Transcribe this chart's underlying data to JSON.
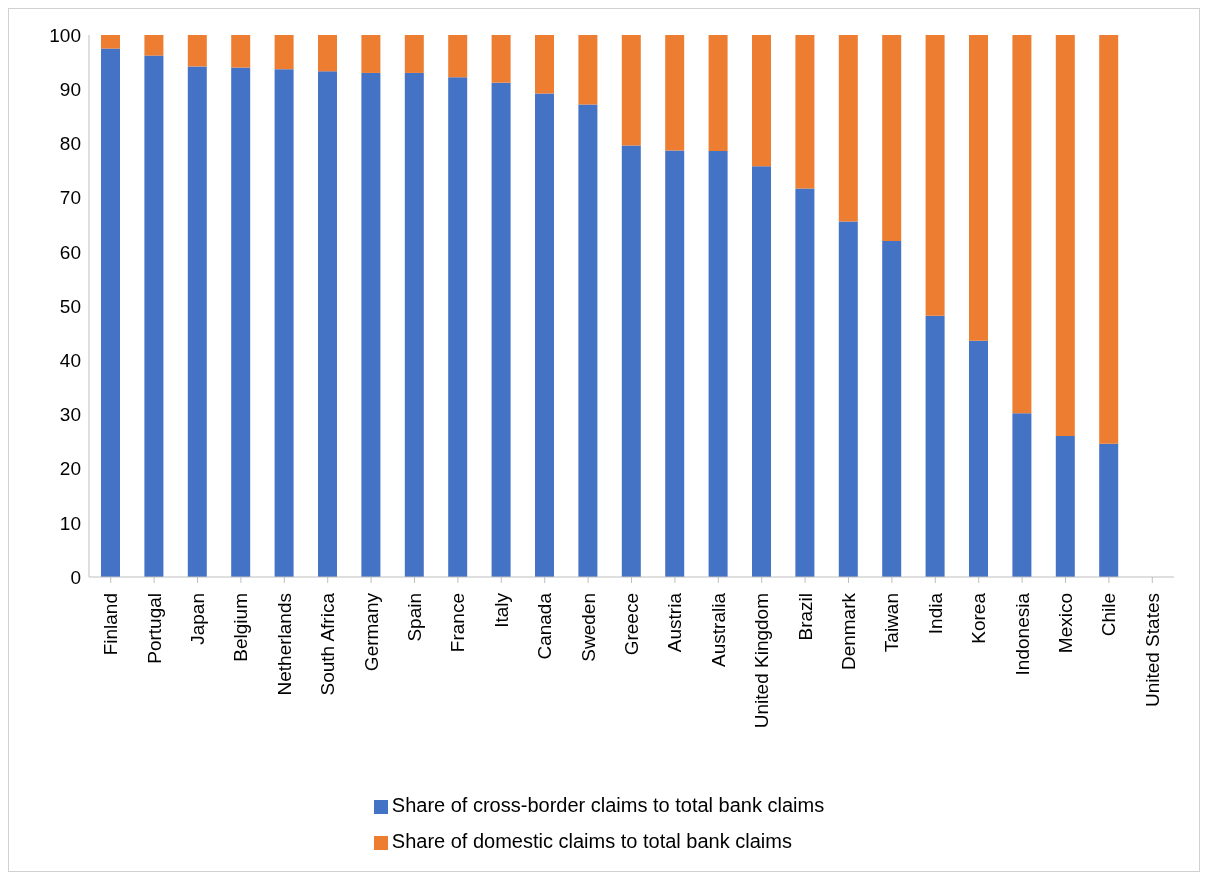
{
  "chart_data": {
    "type": "bar",
    "stacked": true,
    "categories": [
      "Finland",
      "Portugal",
      "Japan",
      "Belgium",
      "Netherlands",
      "South Africa",
      "Germany",
      "Spain",
      "France",
      "Italy",
      "Canada",
      "Sweden",
      "Greece",
      "Austria",
      "Australia",
      "United Kingdom",
      "Brazil",
      "Denmark",
      "Taiwan",
      "India",
      "Korea",
      "Indonesia",
      "Mexico",
      "Chile",
      "United States"
    ],
    "series": [
      {
        "name": "Share of cross-border claims to total bank claims",
        "color": "#4472c4",
        "values": [
          97.5,
          96.2,
          94.2,
          94,
          93.7,
          93.3,
          93,
          93,
          92.2,
          91.2,
          89.2,
          87.2,
          79.6,
          78.7,
          78.6,
          75.8,
          71.7,
          65.6,
          62,
          48.2,
          43.6,
          30.2,
          26,
          24.6,
          null
        ]
      },
      {
        "name": "Share of domestic claims to total bank claims",
        "color": "#ed7d31",
        "values": [
          2.5,
          3.8,
          5.8,
          6,
          6.3,
          6.7,
          7,
          7,
          7.8,
          8.8,
          10.8,
          12.8,
          20.4,
          21.3,
          21.4,
          24.2,
          28.3,
          34.4,
          38,
          51.8,
          56.4,
          69.8,
          74,
          75.4,
          null
        ]
      }
    ],
    "ylim": [
      0,
      100
    ],
    "yticks": [
      0,
      10,
      20,
      30,
      40,
      50,
      60,
      70,
      80,
      90,
      100
    ],
    "grid": false,
    "legend": "bottom"
  }
}
